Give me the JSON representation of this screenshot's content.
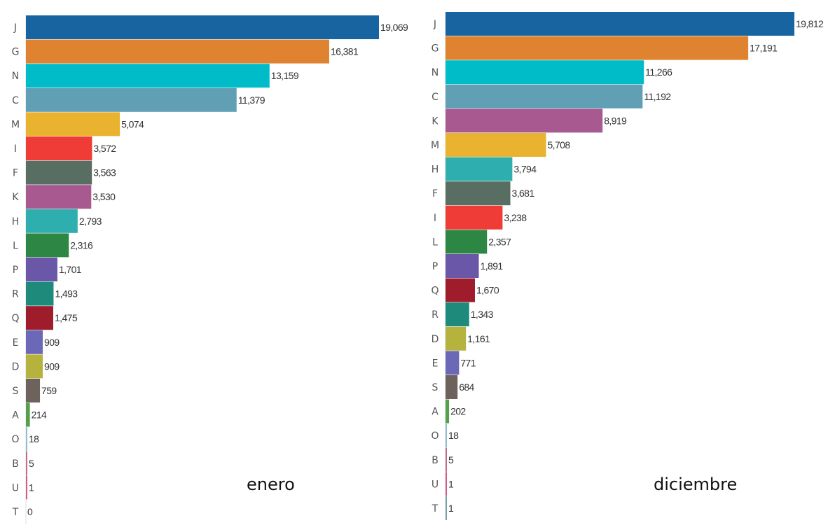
{
  "chart_data": [
    {
      "type": "bar",
      "orientation": "horizontal",
      "title": "enero",
      "categories": [
        "J",
        "G",
        "N",
        "C",
        "M",
        "I",
        "F",
        "K",
        "H",
        "L",
        "P",
        "R",
        "Q",
        "E",
        "D",
        "S",
        "A",
        "O",
        "B",
        "U",
        "T"
      ],
      "values": [
        19069,
        16381,
        13159,
        11379,
        5074,
        3572,
        3563,
        3530,
        2793,
        2316,
        1701,
        1493,
        1475,
        909,
        909,
        759,
        214,
        18,
        5,
        1,
        0
      ],
      "value_labels": [
        "19,069",
        "16,381",
        "13,159",
        "11,379",
        "5,074",
        "3,572",
        "3,563",
        "3,530",
        "2,793",
        "2,316",
        "1,701",
        "1,493",
        "1,475",
        "909",
        "909",
        "759",
        "214",
        "18",
        "5",
        "1",
        "0"
      ],
      "xlim": [
        0,
        19069
      ],
      "grid": false,
      "legend": "none",
      "colors": {
        "J": "#1764a0",
        "G": "#e08330",
        "N": "#00bcc9",
        "C": "#609fb4",
        "M": "#e9b22f",
        "I": "#ef3c36",
        "F": "#586e63",
        "K": "#a85a90",
        "H": "#2eaeae",
        "L": "#2e8645",
        "P": "#6b57a8",
        "R": "#1e8a7c",
        "Q": "#9e1c2c",
        "E": "#6b68b8",
        "D": "#b5b33e",
        "S": "#6e635c",
        "A": "#55a04b",
        "O": "#8fbfcc",
        "B": "#c56d86",
        "U": "#d15c8c",
        "T": "#7aa0a8"
      }
    },
    {
      "type": "bar",
      "orientation": "horizontal",
      "title": "diciembre",
      "categories": [
        "J",
        "G",
        "N",
        "C",
        "K",
        "M",
        "H",
        "F",
        "I",
        "L",
        "P",
        "Q",
        "R",
        "D",
        "E",
        "S",
        "A",
        "O",
        "B",
        "U",
        "T"
      ],
      "values": [
        19812,
        17191,
        11266,
        11192,
        8919,
        5708,
        3794,
        3681,
        3238,
        2357,
        1891,
        1670,
        1343,
        1161,
        771,
        684,
        202,
        18,
        5,
        1,
        1
      ],
      "value_labels": [
        "19,812",
        "17,191",
        "11,266",
        "11,192",
        "8,919",
        "5,708",
        "3,794",
        "3,681",
        "3,238",
        "2,357",
        "1,891",
        "1,670",
        "1,343",
        "1,161",
        "771",
        "684",
        "202",
        "18",
        "5",
        "1",
        "1"
      ],
      "xlim": [
        0,
        19812
      ],
      "grid": false,
      "legend": "none",
      "colors": {
        "J": "#1764a0",
        "G": "#e08330",
        "N": "#00bcc9",
        "C": "#609fb4",
        "K": "#a85a90",
        "M": "#e9b22f",
        "H": "#2eaeae",
        "F": "#586e63",
        "I": "#ef3c36",
        "L": "#2e8645",
        "P": "#6b57a8",
        "Q": "#9e1c2c",
        "R": "#1e8a7c",
        "D": "#b5b33e",
        "E": "#6b68b8",
        "S": "#6e635c",
        "A": "#55a04b",
        "O": "#8fbfcc",
        "B": "#c56d86",
        "U": "#d15c8c",
        "T": "#7aa0a8"
      }
    }
  ]
}
